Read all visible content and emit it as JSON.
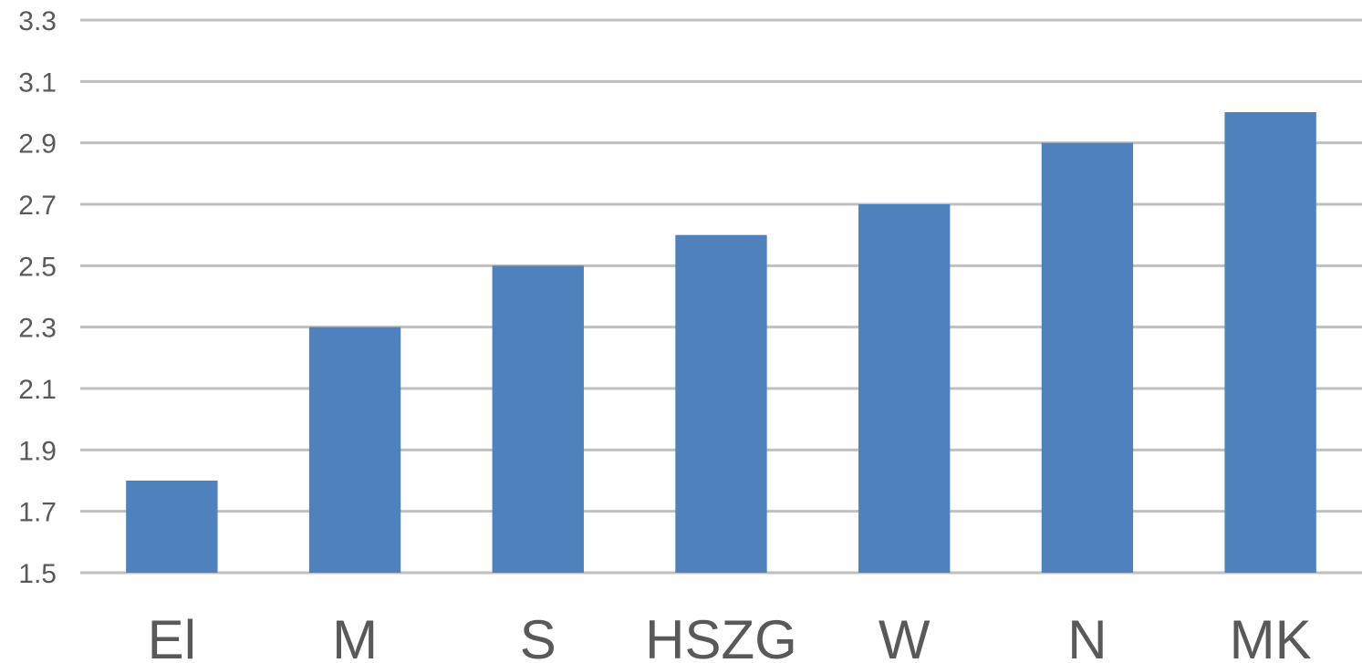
{
  "colors": {
    "bar": "#4f81bd",
    "grid": "#bfbfbf",
    "text": "#595959"
  },
  "chart_data": {
    "type": "bar",
    "categories": [
      "El",
      "M",
      "S",
      "HSZG",
      "W",
      "N",
      "MK"
    ],
    "values": [
      1.8,
      2.3,
      2.5,
      2.6,
      2.7,
      2.9,
      3.0
    ],
    "title": "",
    "xlabel": "",
    "ylabel": "",
    "ylim": [
      1.5,
      3.3
    ],
    "yticks": [
      "1.5",
      "1.7",
      "1.9",
      "2.1",
      "2.3",
      "2.5",
      "2.7",
      "2.9",
      "3.1",
      "3.3"
    ],
    "grid": true,
    "legend": "none"
  }
}
